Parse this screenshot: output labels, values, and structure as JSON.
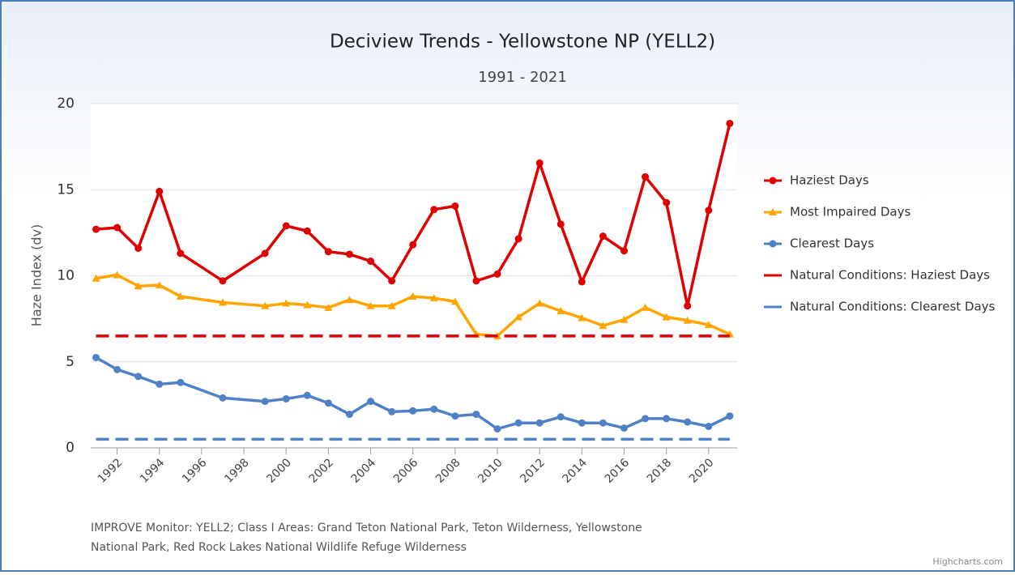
{
  "chart_data": {
    "type": "line",
    "title": "Deciview Trends - Yellowstone NP (YELL2)",
    "subtitle": "1991 - 2021",
    "y_label": "Haze Index (dv)",
    "x": [
      1991,
      1992,
      1993,
      1994,
      1995,
      1997,
      1999,
      2000,
      2001,
      2002,
      2003,
      2004,
      2005,
      2006,
      2007,
      2008,
      2009,
      2010,
      2011,
      2012,
      2013,
      2014,
      2015,
      2016,
      2017,
      2018,
      2019,
      2020,
      2021
    ],
    "series": [
      {
        "name": "Haziest Days",
        "color": "#e00000",
        "marker": "circle",
        "values": [
          12.7,
          12.8,
          11.6,
          14.9,
          11.3,
          9.7,
          11.3,
          12.9,
          12.6,
          11.4,
          11.25,
          10.85,
          9.7,
          11.8,
          13.85,
          14.05,
          9.7,
          10.1,
          12.15,
          16.55,
          13,
          9.65,
          12.3,
          11.45,
          15.75,
          14.25,
          8.25,
          13.8,
          18.85
        ]
      },
      {
        "name": "Most Impaired Days",
        "color": "#ffa500",
        "marker": "triangle",
        "values": [
          9.85,
          10.05,
          9.4,
          9.45,
          8.8,
          8.45,
          8.25,
          8.4,
          8.3,
          8.15,
          8.6,
          8.25,
          8.25,
          8.8,
          8.7,
          8.5,
          6.6,
          6.5,
          7.6,
          8.4,
          7.95,
          7.55,
          7.1,
          7.45,
          8.15,
          7.6,
          7.4,
          7.15,
          6.6
        ]
      },
      {
        "name": "Clearest Days",
        "color": "#4f81c7",
        "marker": "circle",
        "values": [
          5.25,
          4.55,
          4.15,
          3.7,
          3.8,
          2.9,
          2.7,
          2.85,
          3.05,
          2.6,
          1.95,
          2.7,
          2.1,
          2.15,
          2.25,
          1.85,
          1.95,
          1.1,
          1.45,
          1.45,
          1.8,
          1.45,
          1.45,
          1.15,
          1.7,
          1.7,
          1.5,
          1.25,
          1.85
        ]
      },
      {
        "name": "Natural Conditions: Haziest Days",
        "color": "#e00000",
        "dashed": true,
        "x": [
          1991,
          2021
        ],
        "values": [
          6.5,
          6.5
        ]
      },
      {
        "name": "Natural Conditions: Clearest Days",
        "color": "#4f81c7",
        "dashed": true,
        "x": [
          1991,
          2021
        ],
        "values": [
          0.5,
          0.5
        ]
      }
    ],
    "xlim": [
      1990.75,
      2021.35
    ],
    "xticks": [
      1992,
      1994,
      1996,
      1998,
      2000,
      2002,
      2004,
      2006,
      2008,
      2010,
      2012,
      2014,
      2016,
      2018,
      2020
    ],
    "ylim": [
      0,
      20
    ],
    "yticks": [
      0,
      5,
      10,
      15,
      20
    ],
    "grid": true,
    "legend": "right",
    "footnote": [
      "IMPROVE Monitor: YELL2; Class I Areas: Grand Teton National Park, Teton Wilderness, Yellowstone",
      "National Park, Red Rock Lakes National Wildlife Refuge Wilderness"
    ],
    "credit": "Highcharts.com"
  }
}
